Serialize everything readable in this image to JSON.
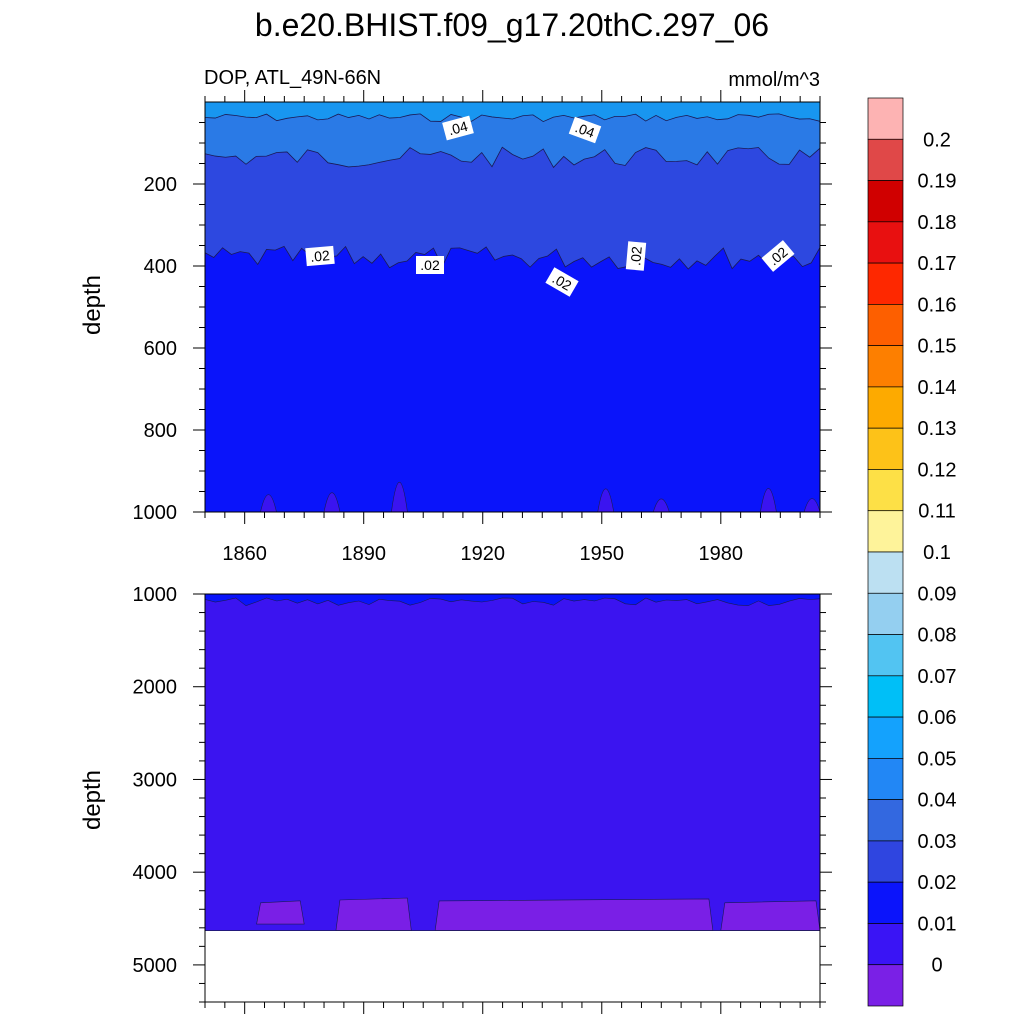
{
  "title": "b.e20.BHIST.f09_g17.20thC.297_06",
  "subtitle_left": "DOP, ATL_49N-66N",
  "subtitle_right": "mmol/m^3",
  "chart_data": [
    {
      "type": "heatmap",
      "panel": "upper",
      "variable": "DOP",
      "region": "ATL_49N-66N",
      "units": "mmol/m^3",
      "ylabel": "depth",
      "y_reversed": true,
      "ylim": [
        1000,
        0
      ],
      "yticks": [
        200,
        400,
        600,
        800,
        1000
      ],
      "xlim": [
        1850,
        2005
      ],
      "xticks": [
        1860,
        1890,
        1920,
        1950,
        1980
      ],
      "contour_labels": [
        ".04",
        ".04",
        ".02",
        ".02",
        ".02",
        ".02",
        ".02"
      ],
      "bands": [
        {
          "range": "0.04-0.05",
          "depth_from": 0,
          "depth_to": 40
        },
        {
          "range": "0.03-0.04",
          "depth_from": 40,
          "depth_to": 150
        },
        {
          "range": "0.02-0.03",
          "depth_from": 150,
          "depth_to": 380
        },
        {
          "range": "0.01-0.02",
          "depth_from": 380,
          "depth_to": 1000
        }
      ]
    },
    {
      "type": "heatmap",
      "panel": "lower",
      "ylabel": "depth",
      "y_reversed": true,
      "ylim": [
        5400,
        1000
      ],
      "yticks": [
        1000,
        2000,
        3000,
        4000,
        5000
      ],
      "xlim": [
        1850,
        2005
      ],
      "data_bottom_depth": 4630,
      "bands": [
        {
          "range": "0.01-0.02",
          "depth_from": 1000,
          "depth_to": 1100
        },
        {
          "range": "0-0.01",
          "depth_from": 1100,
          "depth_to": 4350
        },
        {
          "range": "<0",
          "depth_from": 4350,
          "depth_to": 4630
        }
      ]
    }
  ],
  "colorbar": {
    "labels": [
      "0.2",
      "0.19",
      "0.18",
      "0.17",
      "0.16",
      "0.15",
      "0.14",
      "0.13",
      "0.12",
      "0.11",
      "0.1",
      "0.09",
      "0.08",
      "0.07",
      "0.06",
      "0.05",
      "0.04",
      "0.03",
      "0.02",
      "0.01",
      "0"
    ],
    "colors": [
      "#fdb3b3",
      "#e04848",
      "#d00000",
      "#e81010",
      "#fe2800",
      "#fd5f00",
      "#fd7f00",
      "#fdaa00",
      "#fdc218",
      "#fde046",
      "#fef39a",
      "#bce0f2",
      "#94cff0",
      "#52c4f2",
      "#00bff7",
      "#14a2fd",
      "#2287f5",
      "#3368e0",
      "#2f45e0",
      "#0b14fb",
      "#3a14f5",
      "#7a20e6"
    ]
  },
  "colors": {
    "band_005": "#1896f0",
    "band_004": "#2a7ae6",
    "band_003": "#3362e0",
    "band_002": "#2d48e0",
    "band_001": "#0a14fa",
    "band_000": "#3b14f0",
    "band_neg": "#7a1fe6"
  }
}
